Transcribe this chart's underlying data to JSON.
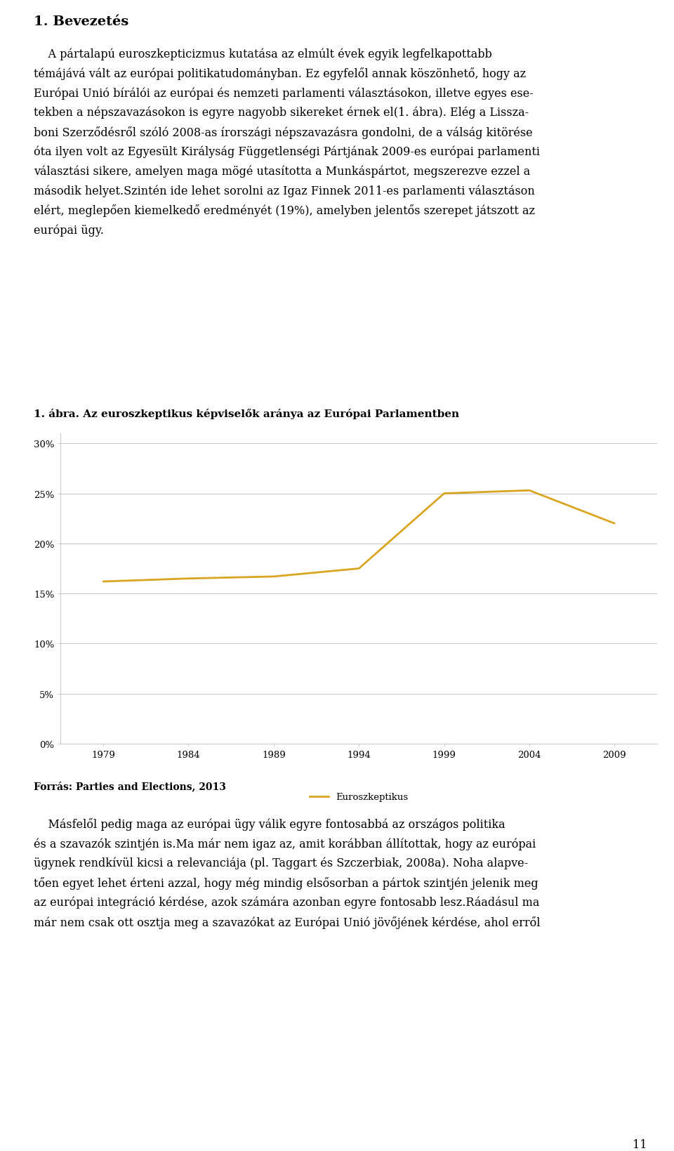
{
  "page_title": "1. Bevezetés",
  "chart_title": "1. ábra. Az euroszkeptikus képviselők aránya az Európai Parlamentben",
  "x_values": [
    1979,
    1984,
    1989,
    1994,
    1999,
    2004,
    2009
  ],
  "y_values": [
    16.2,
    16.5,
    16.7,
    17.5,
    25.0,
    25.3,
    22.0
  ],
  "line_color": "#DAA520",
  "legend_label": "Euroszkeptikus",
  "y_ticks": [
    0,
    5,
    10,
    15,
    20,
    25,
    30
  ],
  "y_tick_labels": [
    "0%",
    "5%",
    "10%",
    "15%",
    "20%",
    "25%",
    "30%"
  ],
  "ylim": [
    0,
    31
  ],
  "source_text": "Forrás: Parties and Elections, 2013",
  "page_number": "11",
  "background_color": "#ffffff",
  "text_color": "#000000",
  "font_size_body": 11.5,
  "font_size_title": 14,
  "font_size_chart_title": 11,
  "font_size_source": 10,
  "line_width": 2.0,
  "para1_line1": "    A pártalapú euroszkepticizmus kutatása az elmúlt évek egyik legfelkapottabb",
  "para1_line2": "témájává vált az európai politikatudományban. Ez egyfelől annak köszönhető, hogy az",
  "para1_line3": "Európai Unió bírálói az európai és nemzeti parlamenti választásokon, illetve egyes ese-",
  "para1_line4": "tekben a népszavazásokon is egyre nagyobb sikereket érnek el(1. ábra). Elég a Lissza-",
  "para1_line5": "boni Szerződésről szóló 2008-as írországi népszavazásra gondolni, de a válság kitörése",
  "para1_line6": "óta ilyen volt az Egyesült Királyság Függetlenségi Pártjának 2009-es európai parlamenti",
  "para1_line7": "választási sikere, amelyen maga mögé utasította a Munkáspártot, megszerezve ezzel a",
  "para1_line8": "második helyet.Szintén ide lehet sorolni az Igaz Finnek 2011-es parlamenti választáson",
  "para1_line9": "elért, meglepően kiemelkedő eredményét (19%), amelyben jelentős szerepet játszott az",
  "para1_line10": "európai ügy.",
  "para2_line1": "    Másfelől pedig maga az európai ügy válik egyre fontosabbá az országos politika",
  "para2_line2": "és a szavazók szintjén is.Ma már nem igaz az, amit korábban állítottak, hogy az európai",
  "para2_line3": "ügynek rendkívül kicsi a relevanciája (pl. Taggart és Szczerbiak, 2008a). Noha alapve-",
  "para2_line4": "tően egyet lehet érteni azzal, hogy még mindig elsősorban a pártok szintjén jelenik meg",
  "para2_line5": "az európai integráció kérdése, azok számára azonban egyre fontosabb lesz.Ráadásul ma",
  "para2_line6": "már nem csak ott osztja meg a szavazókat az Európai Unió jövőjének kérdése, ahol erről"
}
